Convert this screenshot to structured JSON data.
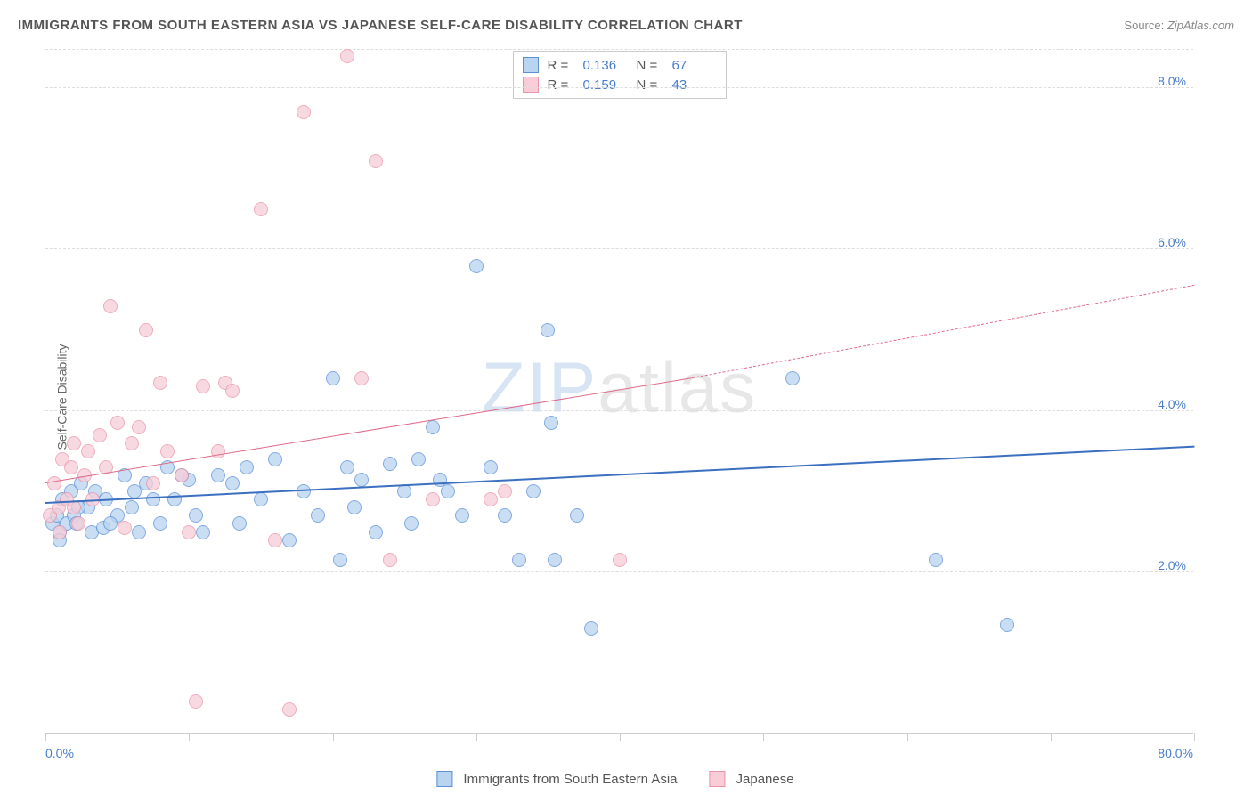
{
  "title": "IMMIGRANTS FROM SOUTH EASTERN ASIA VS JAPANESE SELF-CARE DISABILITY CORRELATION CHART",
  "source_label": "Source:",
  "source_value": "ZipAtlas.com",
  "yaxis_label": "Self-Care Disability",
  "watermark": {
    "part1": "ZIP",
    "part2": "atlas"
  },
  "chart": {
    "type": "scatter",
    "xlim": [
      0,
      80
    ],
    "ylim": [
      0,
      8.5
    ],
    "xlim_labels": [
      "0.0%",
      "80.0%"
    ],
    "ytick_positions": [
      2.0,
      4.0,
      6.0,
      8.0
    ],
    "ytick_labels": [
      "2.0%",
      "4.0%",
      "6.0%",
      "8.0%"
    ],
    "xtick_positions": [
      0,
      10,
      20,
      30,
      40,
      50,
      60,
      70,
      80
    ],
    "grid_color": "#dddddd",
    "background_color": "#ffffff",
    "series": [
      {
        "name": "Immigrants from South Eastern Asia",
        "fill": "#b8d4f0",
        "stroke": "#5b8fd6",
        "marker_radius": 8,
        "marker_opacity": 0.75,
        "stats": {
          "R": "0.136",
          "N": "67"
        },
        "trend": {
          "x1": 0,
          "y1": 2.85,
          "x2": 80,
          "y2": 3.55,
          "color": "#3b6fc0",
          "width": 2.5,
          "dash": "solid",
          "extrapolate_from": 80
        },
        "points": [
          [
            0.5,
            2.6
          ],
          [
            0.8,
            2.7
          ],
          [
            1.0,
            2.5
          ],
          [
            1.2,
            2.9
          ],
          [
            1.5,
            2.6
          ],
          [
            1.8,
            3.0
          ],
          [
            2.0,
            2.7
          ],
          [
            2.2,
            2.6
          ],
          [
            2.5,
            3.1
          ],
          [
            3.0,
            2.8
          ],
          [
            3.2,
            2.5
          ],
          [
            3.5,
            3.0
          ],
          [
            4.0,
            2.55
          ],
          [
            4.2,
            2.9
          ],
          [
            5.0,
            2.7
          ],
          [
            5.5,
            3.2
          ],
          [
            6.0,
            2.8
          ],
          [
            6.5,
            2.5
          ],
          [
            7.0,
            3.1
          ],
          [
            7.5,
            2.9
          ],
          [
            8.0,
            2.6
          ],
          [
            8.5,
            3.3
          ],
          [
            9.0,
            2.9
          ],
          [
            10.0,
            3.15
          ],
          [
            10.5,
            2.7
          ],
          [
            11.0,
            2.5
          ],
          [
            12.0,
            3.2
          ],
          [
            13.0,
            3.1
          ],
          [
            13.5,
            2.6
          ],
          [
            14.0,
            3.3
          ],
          [
            15.0,
            2.9
          ],
          [
            16.0,
            3.4
          ],
          [
            17.0,
            2.4
          ],
          [
            18.0,
            3.0
          ],
          [
            19.0,
            2.7
          ],
          [
            20.0,
            4.4
          ],
          [
            20.5,
            2.15
          ],
          [
            21.0,
            3.3
          ],
          [
            21.5,
            2.8
          ],
          [
            22.0,
            3.15
          ],
          [
            23.0,
            2.5
          ],
          [
            24.0,
            3.35
          ],
          [
            25.0,
            3.0
          ],
          [
            25.5,
            2.6
          ],
          [
            26.0,
            3.4
          ],
          [
            27.0,
            3.8
          ],
          [
            27.5,
            3.15
          ],
          [
            28.0,
            3.0
          ],
          [
            29.0,
            2.7
          ],
          [
            30.0,
            5.8
          ],
          [
            31.0,
            3.3
          ],
          [
            32.0,
            2.7
          ],
          [
            33.0,
            2.15
          ],
          [
            34.0,
            3.0
          ],
          [
            35.0,
            5.0
          ],
          [
            35.2,
            3.85
          ],
          [
            35.5,
            2.15
          ],
          [
            37.0,
            2.7
          ],
          [
            38.0,
            1.3
          ],
          [
            52.0,
            4.4
          ],
          [
            62.0,
            2.15
          ],
          [
            67.0,
            1.35
          ],
          [
            1.0,
            2.4
          ],
          [
            2.3,
            2.8
          ],
          [
            4.5,
            2.6
          ],
          [
            6.2,
            3.0
          ],
          [
            9.5,
            3.2
          ]
        ]
      },
      {
        "name": "Japanese",
        "fill": "#f8cdd7",
        "stroke": "#e993a8",
        "marker_radius": 8,
        "marker_opacity": 0.75,
        "stats": {
          "R": "0.159",
          "N": "43"
        },
        "trend": {
          "x1": 0,
          "y1": 3.1,
          "x2": 45,
          "y2": 4.4,
          "color": "#e06a88",
          "width": 1.8,
          "dash": "solid",
          "extrapolate_from": 45,
          "extrapolate_to": 80,
          "extrapolate_y": 5.55
        },
        "points": [
          [
            0.3,
            2.7
          ],
          [
            0.6,
            3.1
          ],
          [
            0.9,
            2.8
          ],
          [
            1.2,
            3.4
          ],
          [
            1.5,
            2.9
          ],
          [
            1.8,
            3.3
          ],
          [
            2.0,
            3.6
          ],
          [
            2.3,
            2.6
          ],
          [
            2.7,
            3.2
          ],
          [
            3.0,
            3.5
          ],
          [
            3.3,
            2.9
          ],
          [
            3.8,
            3.7
          ],
          [
            4.2,
            3.3
          ],
          [
            4.5,
            5.3
          ],
          [
            5.0,
            3.85
          ],
          [
            5.5,
            2.55
          ],
          [
            6.0,
            3.6
          ],
          [
            6.5,
            3.8
          ],
          [
            7.0,
            5.0
          ],
          [
            7.5,
            3.1
          ],
          [
            8.0,
            4.35
          ],
          [
            8.5,
            3.5
          ],
          [
            9.5,
            3.2
          ],
          [
            10.0,
            2.5
          ],
          [
            10.5,
            0.4
          ],
          [
            11.0,
            4.3
          ],
          [
            12.0,
            3.5
          ],
          [
            12.5,
            4.35
          ],
          [
            13.0,
            4.25
          ],
          [
            15.0,
            6.5
          ],
          [
            16.0,
            2.4
          ],
          [
            17.0,
            0.3
          ],
          [
            18.0,
            7.7
          ],
          [
            21.0,
            8.4
          ],
          [
            22.0,
            4.4
          ],
          [
            23.0,
            7.1
          ],
          [
            24.0,
            2.15
          ],
          [
            27.0,
            2.9
          ],
          [
            31.0,
            2.9
          ],
          [
            32.0,
            3.0
          ],
          [
            40.0,
            2.15
          ],
          [
            1.0,
            2.5
          ],
          [
            2.0,
            2.8
          ]
        ]
      }
    ]
  },
  "legend_bottom": [
    {
      "label": "Immigrants from South Eastern Asia",
      "fill": "#b8d4f0",
      "stroke": "#5b8fd6"
    },
    {
      "label": "Japanese",
      "fill": "#f8cdd7",
      "stroke": "#e993a8"
    }
  ]
}
